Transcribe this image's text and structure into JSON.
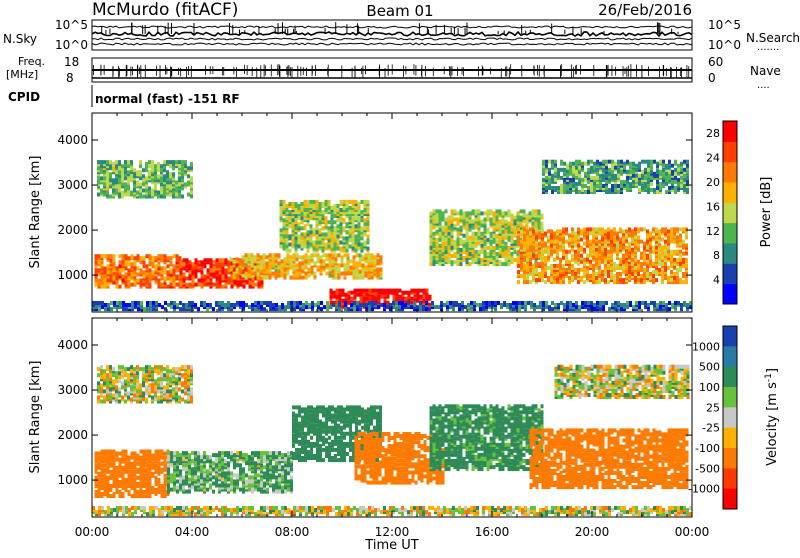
{
  "header": {
    "station": "McMurdo (fitACF)",
    "beam": "Beam 01",
    "date": "26/Feb/2016"
  },
  "noise_panel": {
    "left_label": "N.Sky",
    "right_label": "N.Search",
    "left_ticks": [
      "10^5",
      "10^0"
    ],
    "right_ticks": [
      "10^5",
      "10^0"
    ]
  },
  "freq_panel": {
    "left_label_1": "Freq.",
    "left_label_2": "[MHz]",
    "left_ticks": [
      "18",
      "8"
    ],
    "right_label": "Nave",
    "right_ticks": [
      "60",
      "0"
    ]
  },
  "cpid": {
    "label": "CPID",
    "text": "normal (fast) -151 RF"
  },
  "x_axis": {
    "label": "Time UT",
    "tick_labels": [
      "00:00",
      "04:00",
      "08:00",
      "12:00",
      "16:00",
      "20:00",
      "00:00"
    ]
  },
  "chart_data": [
    {
      "type": "heatmap",
      "title": "",
      "xlabel": "Time UT",
      "ylabel": "Slant Range [km]",
      "x_range_hours": [
        0,
        24
      ],
      "ylim": [
        180,
        4600
      ],
      "y_ticks": [
        "1000",
        "2000",
        "3000",
        "4000"
      ],
      "colorbar": {
        "label": "Power [dB]",
        "range": [
          0,
          30
        ],
        "tick_labels": [
          "4",
          "8",
          "12",
          "16",
          "20",
          "24",
          "28"
        ],
        "colors": [
          "#0000ff",
          "#1a3fb0",
          "#2a8a80",
          "#4fb34f",
          "#bfd84a",
          "#ffb000",
          "#ff7a00",
          "#ff4000",
          "#ff0000"
        ]
      },
      "echo_regions": [
        {
          "start_h": 0.1,
          "end_h": 3.5,
          "range_min_km": 700,
          "range_max_km": 1400,
          "power_db": 22
        },
        {
          "start_h": 3.5,
          "end_h": 6.8,
          "range_min_km": 700,
          "range_max_km": 1300,
          "power_db": 26
        },
        {
          "start_h": 5.5,
          "end_h": 11.5,
          "range_min_km": 900,
          "range_max_km": 1400,
          "power_db": 18
        },
        {
          "start_h": 9.5,
          "end_h": 13.5,
          "range_min_km": 250,
          "range_max_km": 650,
          "power_db": 29
        },
        {
          "start_h": 7.5,
          "end_h": 11.0,
          "range_min_km": 1500,
          "range_max_km": 2600,
          "power_db": 14
        },
        {
          "start_h": 13.5,
          "end_h": 18.0,
          "range_min_km": 1200,
          "range_max_km": 2400,
          "power_db": 14
        },
        {
          "start_h": 17.0,
          "end_h": 23.8,
          "range_min_km": 800,
          "range_max_km": 2000,
          "power_db": 20
        },
        {
          "start_h": 18.0,
          "end_h": 23.8,
          "range_min_km": 2800,
          "range_max_km": 3500,
          "power_db": 10
        },
        {
          "start_h": 0.2,
          "end_h": 4.0,
          "range_min_km": 2700,
          "range_max_km": 3500,
          "power_db": 12
        },
        {
          "start_h": 0.0,
          "end_h": 24.0,
          "range_min_km": 200,
          "range_max_km": 380,
          "power_db": 6
        }
      ]
    },
    {
      "type": "heatmap",
      "title": "",
      "xlabel": "Time UT",
      "ylabel": "Slant Range [km]",
      "x_range_hours": [
        0,
        24
      ],
      "ylim": [
        180,
        4600
      ],
      "y_ticks": [
        "1000",
        "2000",
        "3000",
        "4000"
      ],
      "colorbar": {
        "label": "Velocity [m s^-1]",
        "tick_labels": [
          "1000",
          "500",
          "100",
          "25",
          "-25",
          "-100",
          "-500",
          "-1000"
        ],
        "colors": [
          "#1a3fb0",
          "#2a7aa8",
          "#2e8b57",
          "#66c23a",
          "#c8c8c8",
          "#ffb000",
          "#ff7a00",
          "#ff3a00",
          "#ff0000"
        ]
      },
      "echo_regions": [
        {
          "start_h": 0.1,
          "end_h": 3.0,
          "range_min_km": 600,
          "range_max_km": 1600,
          "velocity_ms": -300
        },
        {
          "start_h": 3.0,
          "end_h": 8.0,
          "range_min_km": 700,
          "range_max_km": 1600,
          "velocity_ms": 120
        },
        {
          "start_h": 8.0,
          "end_h": 11.5,
          "range_min_km": 1400,
          "range_max_km": 2600,
          "velocity_ms": 300
        },
        {
          "start_h": 10.5,
          "end_h": 14.0,
          "range_min_km": 900,
          "range_max_km": 2000,
          "velocity_ms": -250
        },
        {
          "start_h": 13.5,
          "end_h": 18.0,
          "range_min_km": 1200,
          "range_max_km": 2600,
          "velocity_ms": 200
        },
        {
          "start_h": 17.5,
          "end_h": 23.8,
          "range_min_km": 800,
          "range_max_km": 2100,
          "velocity_ms": -350
        },
        {
          "start_h": 18.5,
          "end_h": 23.8,
          "range_min_km": 2800,
          "range_max_km": 3500,
          "velocity_ms": 0
        },
        {
          "start_h": 0.2,
          "end_h": 4.0,
          "range_min_km": 2700,
          "range_max_km": 3500,
          "velocity_ms": 0
        },
        {
          "start_h": 0.0,
          "end_h": 24.0,
          "range_min_km": 200,
          "range_max_km": 380,
          "velocity_ms": 0
        }
      ]
    }
  ]
}
